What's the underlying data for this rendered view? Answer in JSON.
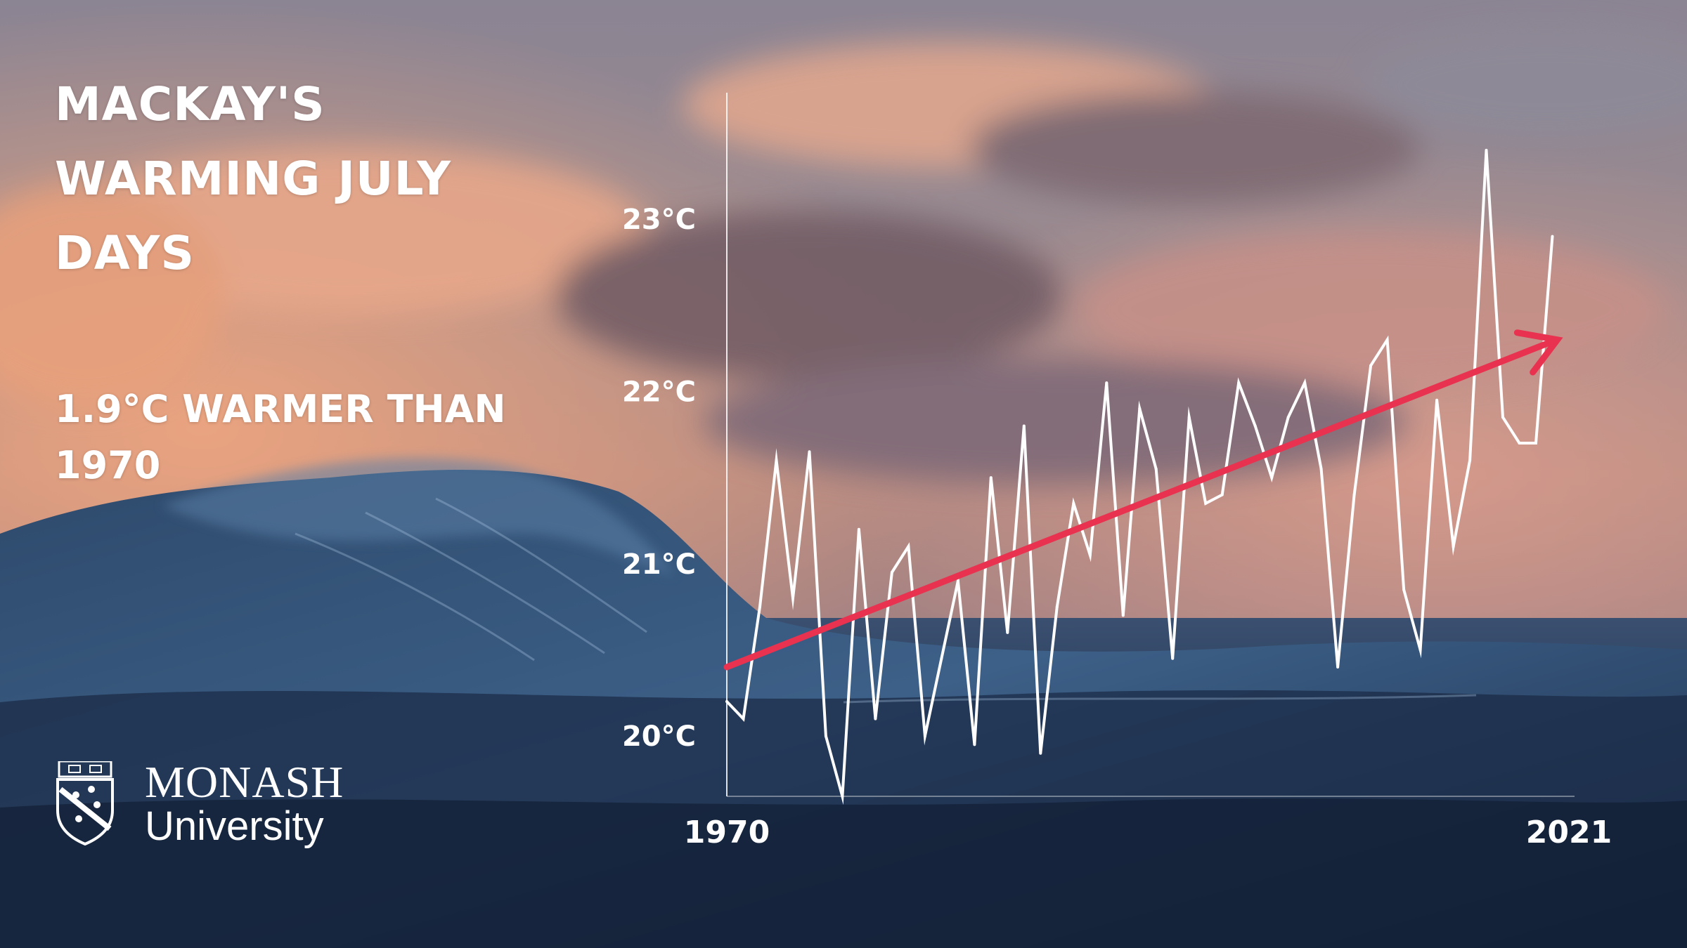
{
  "title": "MACKAY'S WARMING JULY DAYS",
  "subtitle": "1.9°C WARMER THAN 1970",
  "logo": {
    "name": "MONASH",
    "sub": "University",
    "shield_icon": "monash-shield-icon"
  },
  "colors": {
    "text": "#ffffff",
    "line": "#ffffff",
    "trend": "#e8324f"
  },
  "chart_data": {
    "type": "line",
    "xlabel": "",
    "ylabel": "",
    "x_ticks": [
      "1970",
      "2021"
    ],
    "y_ticks": [
      "20°C",
      "21°C",
      "22°C",
      "23°C"
    ],
    "xlim": [
      1970,
      2021
    ],
    "ylim": [
      19.65,
      23.75
    ],
    "grid": false,
    "series": [
      {
        "x": [
          1970,
          1971,
          1972,
          1973,
          1974,
          1975,
          1976,
          1977,
          1978,
          1979,
          1980,
          1981,
          1982,
          1983,
          1984,
          1985,
          1986,
          1987,
          1988,
          1989,
          1990,
          1991,
          1992,
          1993,
          1994,
          1995,
          1996,
          1997,
          1998,
          1999,
          2000,
          2001,
          2002,
          2003,
          2004,
          2005,
          2006,
          2007,
          2008,
          2009,
          2010,
          2011,
          2012,
          2013,
          2014,
          2015,
          2016,
          2017,
          2018,
          2019,
          2020,
          2021
        ],
        "values": [
          20.2,
          20.1,
          20.75,
          21.6,
          20.8,
          21.65,
          20.0,
          19.65,
          21.2,
          20.1,
          20.95,
          21.1,
          20.0,
          20.45,
          20.9,
          19.95,
          21.5,
          20.6,
          21.8,
          19.9,
          20.75,
          21.35,
          21.05,
          22.05,
          20.7,
          21.9,
          21.55,
          20.45,
          21.85,
          21.35,
          21.4,
          22.05,
          21.8,
          21.5,
          21.85,
          22.05,
          21.55,
          20.4,
          21.4,
          22.15,
          22.3,
          20.85,
          20.5,
          21.95,
          21.1,
          21.6,
          23.4,
          21.85,
          21.7,
          21.7,
          22.9,
          null
        ]
      }
    ],
    "trend": {
      "start": [
        1970,
        20.4
      ],
      "end": [
        2020.3,
        22.3
      ]
    },
    "annotation": "1.9°C WARMER THAN 1970"
  }
}
